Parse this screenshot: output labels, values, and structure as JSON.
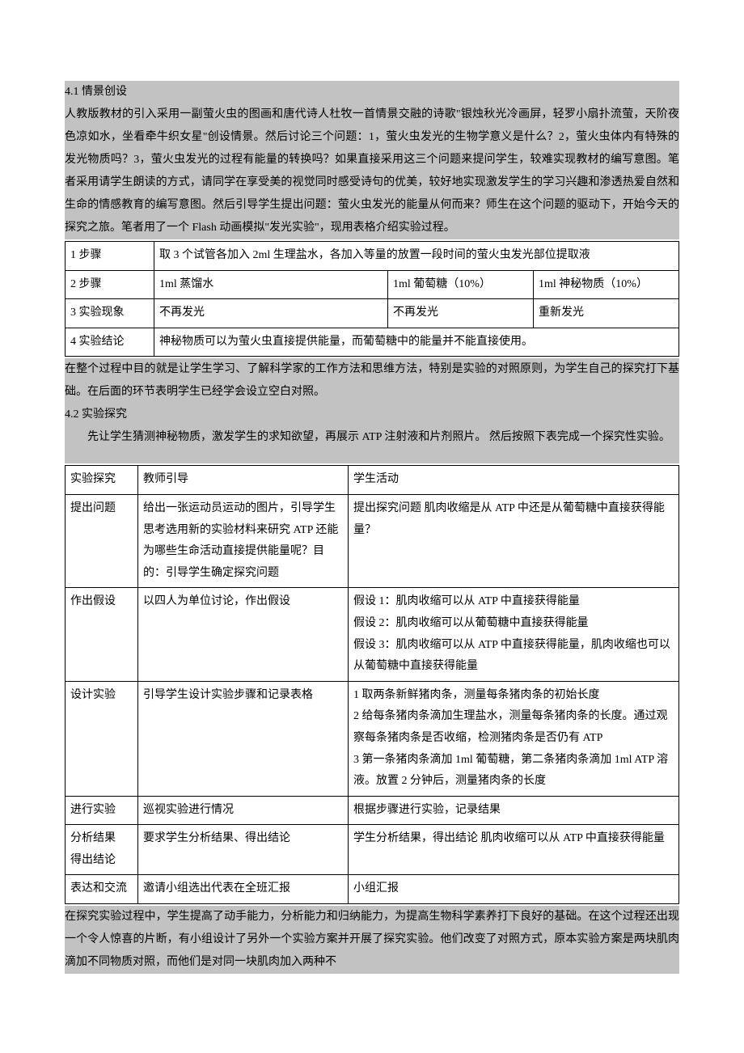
{
  "colors": {
    "highlight": "#c2c2c2",
    "text": "#000000",
    "border": "#000000",
    "page_bg": "#ffffff"
  },
  "typography": {
    "font_family": "SimSun",
    "base_size_pt": 10.5,
    "line_height": 2.0
  },
  "sections": {
    "s41_title": "4.1 情景创设",
    "s41_para": "人教版教材的引入采用一副萤火虫的图画和唐代诗人杜牧一首情景交融的诗歌\"银烛秋光冷画屏，轻罗小扇扑流萤，天阶夜色凉如水，坐看牵牛织女星\"创设情景。然后讨论三个问题：1，萤火虫发光的生物学意义是什么？2，萤火虫体内有特殊的发光物质吗？3，萤火虫发光的过程有能量的转换吗？如果直接采用这三个问题来提问学生，较难实现教材的编写意图。笔者采用请学生朗读的方式，请同学在享受美的视觉同时感受诗句的优美，较好地实现激发学生的学习兴趣和渗透热爱自然和生命的情感教育的编写意图。然后引导学生提出问题：萤火虫发光的能量从何而来？师生在这个问题的驱动下，开始今天的探究之旅。笔者用了一个 Flash 动画模拟\"发光实验\"，现用表格介绍实验过程。",
    "s41_after": "在整个过程中目的就是让学生学习、了解科学家的工作方法和思维方法，特别是实验的对照原则，为学生自己的探究打下基础。在后面的环节表明学生已经学会设立空白对照。",
    "s42_title": "4.2 实验探究",
    "s42_para": "先让学生猜测神秘物质，激发学生的求知欲望，再展示 ATP 注射液和片剂照片。  然后按照下表完成一个探究性实验。",
    "s42_after": "在探究实验过程中，学生提高了动手能力，分析能力和归纳能力，为提高生物科学素养打下良好的基础。在这个过程还出现一个令人惊喜的片断，有小组设计了另外一个实验方案并开展了探究实验。他们改变了对照方式，原本实验方案是两块肌肉滴加不同物质对照，而他们是对同一块肌肉加入两种不"
  },
  "table1": {
    "type": "table",
    "rows": [
      {
        "c1": "1 步骤",
        "c2": "取 3 个试管各加入 2ml 生理盐水，各加入等量的放置一段时间的萤火虫发光部位提取液",
        "colspan": 3
      },
      {
        "c1": "2 步骤",
        "c2": "1ml 蒸馏水",
        "c3": "1ml  葡萄糖（10%）",
        "c4": "1ml  神秘物质（10%）"
      },
      {
        "c1": "3 实验现象",
        "c2": "不再发光",
        "c3": "不再发光",
        "c4": "重新发光"
      },
      {
        "c1": "4  实验结论",
        "c2": "神秘物质可以为萤火虫直接提供能量，而葡萄糖中的能量并不能直接使用。",
        "colspan": 3
      }
    ]
  },
  "table2": {
    "type": "table",
    "header": {
      "c1": "实验探究",
      "c2": "教师引导",
      "c3": "学生活动"
    },
    "rows": [
      {
        "c1": "提出问题",
        "c2": "给出一张运动员运动的图片，引导学生思考选用新的实验材料来研究 ATP 还能为哪些生命活动直接提供能量呢？目的：引导学生确定探究问题",
        "c3": "提出探究问题  肌肉收缩是从 ATP 中还是从葡萄糖中直接获得能量？"
      },
      {
        "c1": "作出假设",
        "c2": "以四人为单位讨论，作出假设",
        "c3": "假设 1：肌肉收缩可以从 ATP 中直接获得能量\n假设 2：肌肉收缩可以从葡萄糖中直接获得能量\n假设 3：肌肉收缩可以从 ATP 中直接获得能量，肌肉收缩也可以从葡萄糖中直接获得能量"
      },
      {
        "c1": "设计实验",
        "c2": "引导学生设计实验步骤和记录表格",
        "c3": "1  取两条新鲜猪肉条，测量每条猪肉条的初始长度\n2  给每条猪肉条滴加生理盐水，测量每条猪肉条的长度。通过观察每条猪肉条是否收缩，检测猪肉条是否仍有 ATP\n3  第一条猪肉条滴加 1ml  葡萄糖，第二条猪肉条滴加 1ml ATP 溶液。放置 2 分钟后，测量猪肉条的长度"
      },
      {
        "c1": "进行实验",
        "c2": "巡视实验进行情况",
        "c3": "根据步骤进行实验，记录结果"
      },
      {
        "c1": "分析结果\n得出结论",
        "c2": "要求学生分析结果、得出结论",
        "c3": "学生分析结果，得出结论  肌肉收缩可以从 ATP 中直接获得能量"
      },
      {
        "c1": "表达和交流",
        "c2": "邀请小组选出代表在全班汇报",
        "c3": "小组汇报"
      }
    ]
  }
}
